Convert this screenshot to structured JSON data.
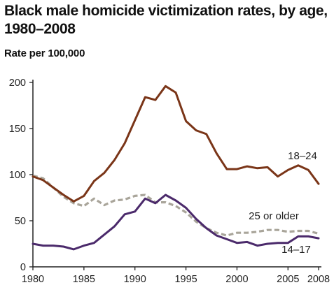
{
  "title": "Black male homicide victimization rates, by age, 1980–2008",
  "chart_data": {
    "type": "line",
    "title": "Black male homicide victimization rates, by age, 1980–2008",
    "ylabel": "Rate per 100,000",
    "xlabel": "",
    "xlim": [
      1980,
      2008
    ],
    "ylim": [
      0,
      200
    ],
    "x_ticks": [
      "1980",
      "1985",
      "1990",
      "1995",
      "2000",
      "2005",
      "2008"
    ],
    "y_ticks": [
      "0",
      "50",
      "100",
      "150",
      "200"
    ],
    "grid": false,
    "legend": "direct labels on lines",
    "x": [
      1980,
      1981,
      1982,
      1983,
      1984,
      1985,
      1986,
      1987,
      1988,
      1989,
      1990,
      1991,
      1992,
      1993,
      1994,
      1995,
      1996,
      1997,
      1998,
      1999,
      2000,
      2001,
      2002,
      2003,
      2004,
      2005,
      2006,
      2007,
      2008
    ],
    "series": [
      {
        "name": "18–24",
        "color": "#7a3518",
        "style": "solid",
        "values": [
          98,
          94,
          86,
          78,
          71,
          77,
          93,
          102,
          116,
          134,
          159,
          184,
          181,
          196,
          189,
          158,
          148,
          144,
          123,
          106,
          106,
          109,
          107,
          108,
          98,
          105,
          110,
          105,
          90
        ]
      },
      {
        "name": "25 or older",
        "color": "#a9a59a",
        "style": "dashed",
        "values": [
          99,
          96,
          86,
          76,
          69,
          66,
          74,
          67,
          72,
          73,
          77,
          78,
          70,
          70,
          66,
          59,
          49,
          42,
          37,
          34,
          37,
          37,
          38,
          40,
          40,
          38,
          39,
          39,
          36
        ]
      },
      {
        "name": "14–17",
        "color": "#4b2a6b",
        "style": "solid",
        "values": [
          25,
          23,
          23,
          22,
          19,
          23,
          26,
          35,
          44,
          57,
          60,
          74,
          69,
          78,
          72,
          64,
          52,
          42,
          34,
          30,
          26,
          27,
          23,
          25,
          26,
          26,
          33,
          33,
          31
        ]
      }
    ]
  }
}
